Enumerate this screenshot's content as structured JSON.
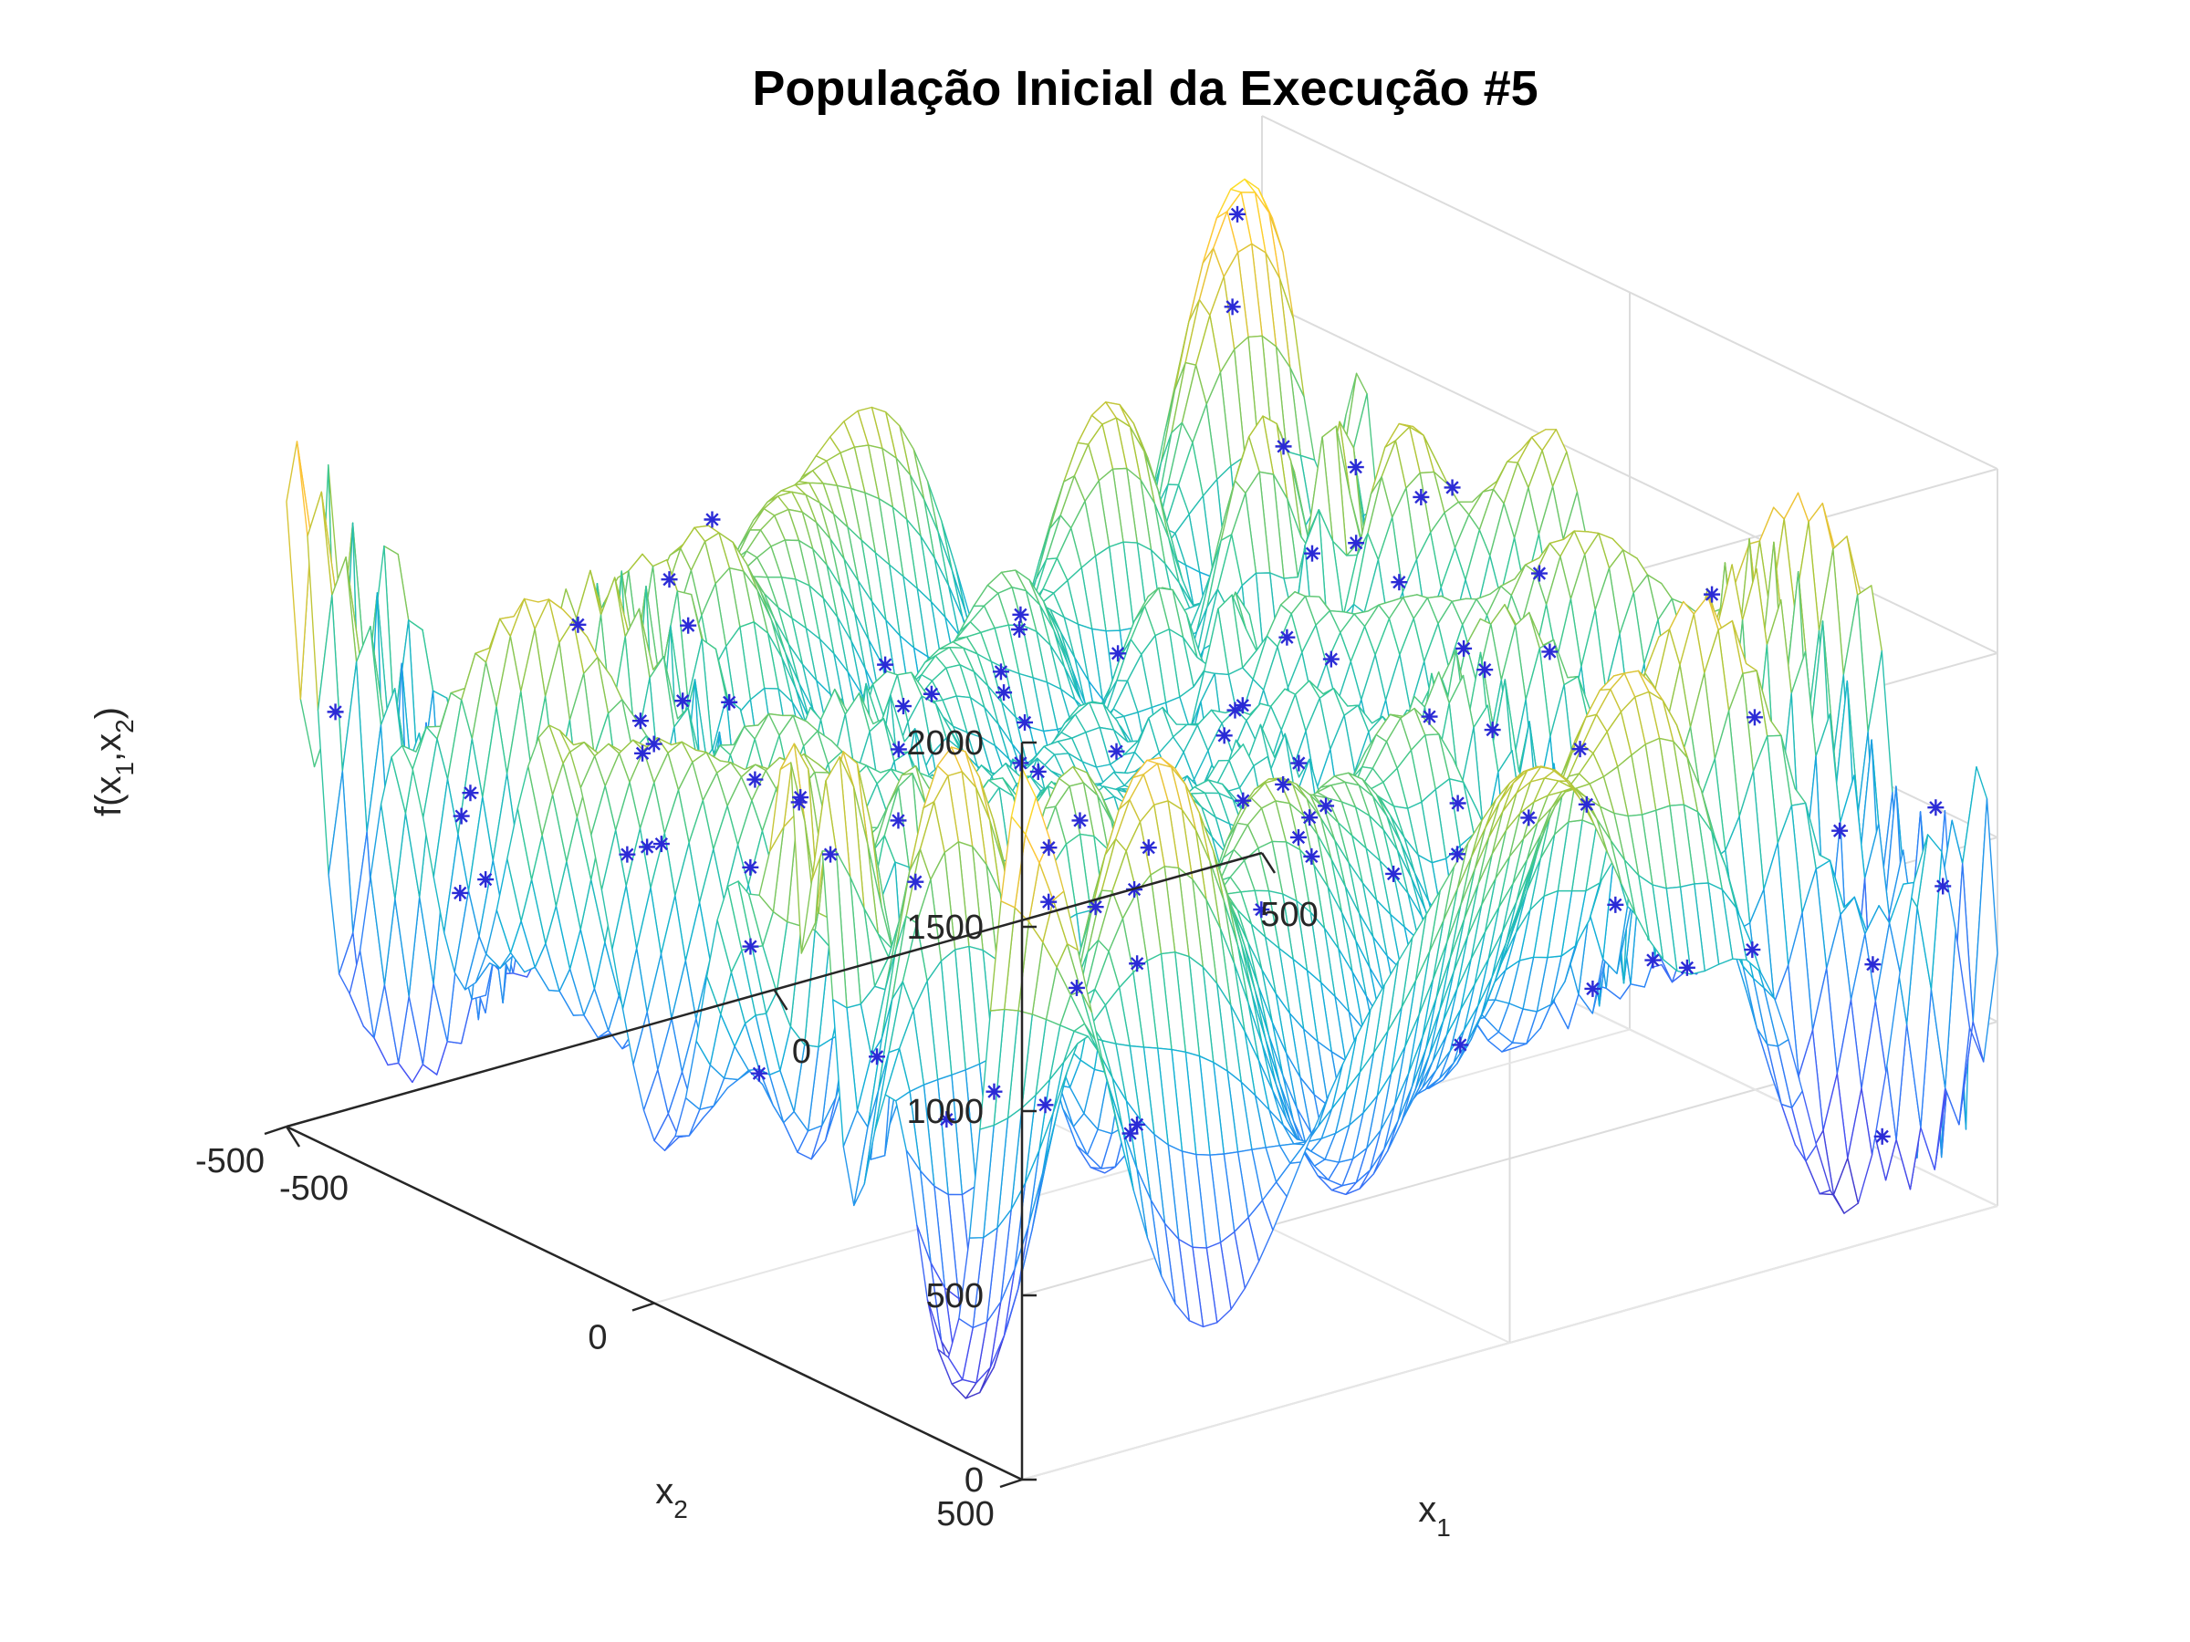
{
  "chart_data": {
    "type": "surface-3d",
    "title": "População Inicial da Execução #5",
    "xlabel": {
      "base": "x",
      "sub": "1"
    },
    "ylabel": {
      "base": "x",
      "sub": "2"
    },
    "zlabel": {
      "pre": "f(x",
      "sub1": "1",
      "mid": ",x",
      "sub2": "2",
      "post": ")"
    },
    "xlim": [
      -500,
      500
    ],
    "ylim": [
      -500,
      500
    ],
    "zlim": [
      0,
      2000
    ],
    "x_ticks": [
      "-500",
      "0",
      "500"
    ],
    "y_ticks": [
      "-500",
      "0",
      "500"
    ],
    "z_ticks": [
      "0",
      "500",
      "1000",
      "1500",
      "2000"
    ],
    "x_tick_values": [
      -500,
      0,
      500
    ],
    "y_tick_values": [
      -500,
      0,
      500
    ],
    "z_tick_values": [
      0,
      500,
      1000,
      1500,
      2000
    ],
    "grid": true,
    "colormap": "parula",
    "surface_function": "eggholder-like oscillating landscape, z range approx 0 to 2000",
    "population_marker": {
      "symbol": "*",
      "color": "#2b2bd6"
    },
    "population_count": 100
  }
}
